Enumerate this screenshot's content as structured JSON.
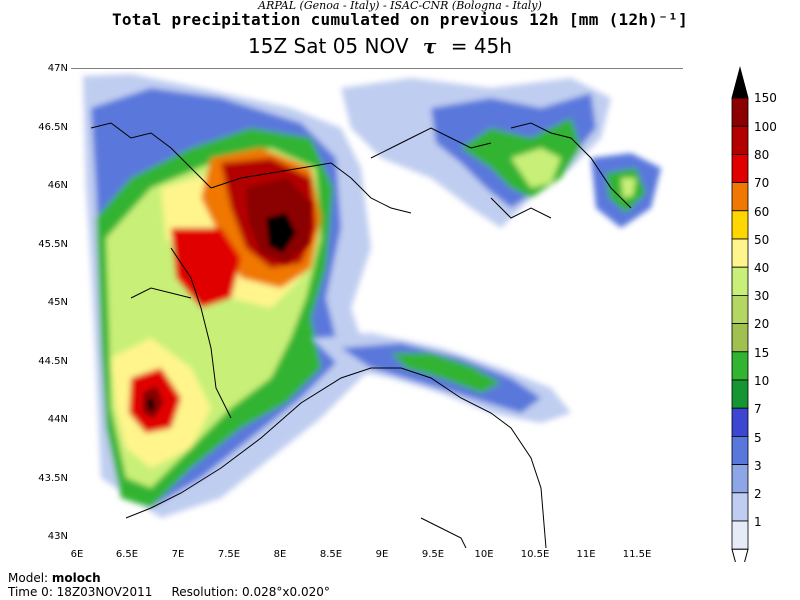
{
  "header": {
    "agencies": "ARPAL (Genoa - Italy)  -  ISAC-CNR (Bologna - Italy)",
    "title": "Total precipitation cumulated on previous 12h [mm (12h)⁻¹]",
    "valid_time": "15Z Sat 05 NOV",
    "tau_symbol": "τ",
    "tau_value": "= 45h"
  },
  "axes": {
    "lat_labels": [
      "47N",
      "46.5N",
      "46N",
      "45.5N",
      "45N",
      "44.5N",
      "44N",
      "43.5N",
      "43N"
    ],
    "lon_labels": [
      "6E",
      "6.5E",
      "7E",
      "7.5E",
      "8E",
      "8.5E",
      "9E",
      "9.5E",
      "10E",
      "10.5E",
      "11E",
      "11.5E"
    ]
  },
  "colorbar": {
    "labels": [
      "150",
      "100",
      "80",
      "70",
      "60",
      "50",
      "40",
      "30",
      "20",
      "15",
      "10",
      "7",
      "5",
      "3",
      "2",
      "1"
    ],
    "colors": [
      "#8b0000",
      "#b30000",
      "#e00000",
      "#f07800",
      "#ffd700",
      "#fff58c",
      "#c8f078",
      "#b4d764",
      "#a0c050",
      "#32b432",
      "#159632",
      "#3c46d2",
      "#5a78dc",
      "#8ca6e6",
      "#bfcdf0",
      "#e6ebf8"
    ],
    "top_color": "#000000"
  },
  "footer": {
    "model_label": "Model:",
    "model_name": "moloch",
    "time0": "Time 0: 18Z03NOV2011",
    "resolution": "Resolution: 0.028°x0.020°"
  }
}
